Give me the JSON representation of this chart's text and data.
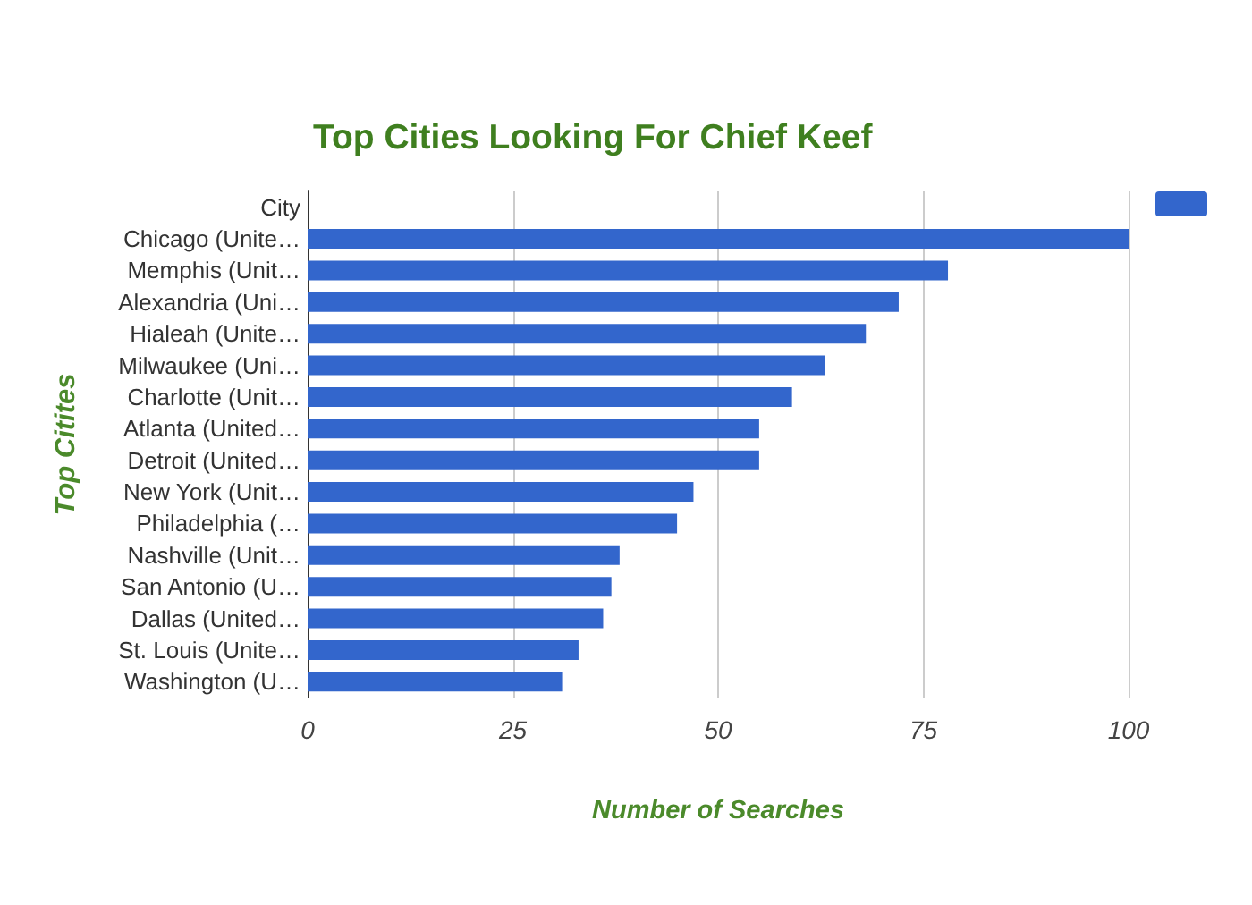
{
  "chart_data": {
    "type": "bar",
    "orientation": "horizontal",
    "title": "Top Cities Looking For Chief Keef",
    "xlabel": "Number of Searches",
    "ylabel": "Top Citites",
    "categories": [
      "City",
      "Chicago (Unite…",
      "Memphis (Unit…",
      "Alexandria (Uni…",
      "Hialeah (Unite…",
      "Milwaukee (Uni…",
      "Charlotte (Unit…",
      "Atlanta (United…",
      "Detroit (United…",
      "New York (Unit…",
      "Philadelphia (…",
      "Nashville (Unit…",
      "San Antonio (U…",
      "Dallas (United…",
      "St. Louis (Unite…",
      "Washington (U…"
    ],
    "values": [
      null,
      100,
      78,
      72,
      68,
      63,
      59,
      55,
      55,
      47,
      45,
      38,
      37,
      36,
      33,
      31
    ],
    "color": "#3366cc",
    "xlim": [
      0,
      100
    ],
    "xticks": [
      0,
      25,
      50,
      75,
      100
    ],
    "grid": "x"
  }
}
